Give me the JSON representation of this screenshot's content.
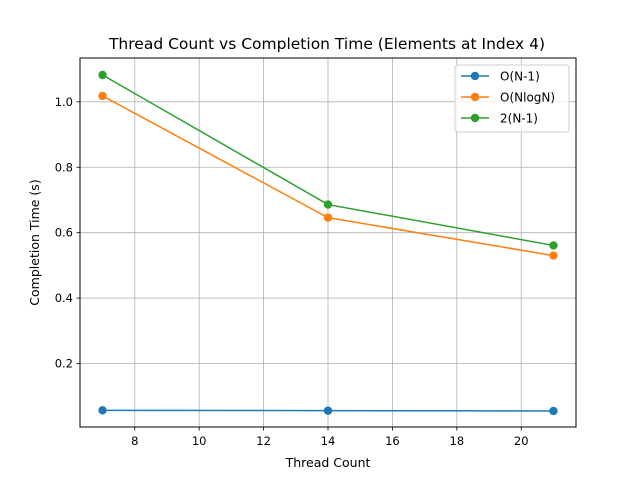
{
  "chart_data": {
    "type": "line",
    "title": "Thread Count vs Completion Time (Elements at Index 4)",
    "xlabel": "Thread Count",
    "ylabel": "Completion Time (s)",
    "x": [
      7,
      14,
      21
    ],
    "xlim": [
      6.3,
      21.7
    ],
    "ylim": [
      0.006,
      1.134
    ],
    "xticks": [
      8,
      10,
      12,
      14,
      16,
      18,
      20
    ],
    "yticks": [
      0.2,
      0.4,
      0.6,
      0.8,
      1.0
    ],
    "ytick_labels": [
      "0.2",
      "0.4",
      "0.6",
      "0.8",
      "1.0"
    ],
    "grid": true,
    "legend_position": "top-right",
    "series": [
      {
        "name": "O(N-1)",
        "color": "#1f77b4",
        "values": [
          0.057,
          0.056,
          0.055
        ]
      },
      {
        "name": "O(NlogN)",
        "color": "#ff7f0e",
        "values": [
          1.018,
          0.646,
          0.53
        ]
      },
      {
        "name": "2(N-1)",
        "color": "#2ca02c",
        "values": [
          1.082,
          0.686,
          0.561
        ]
      }
    ]
  }
}
